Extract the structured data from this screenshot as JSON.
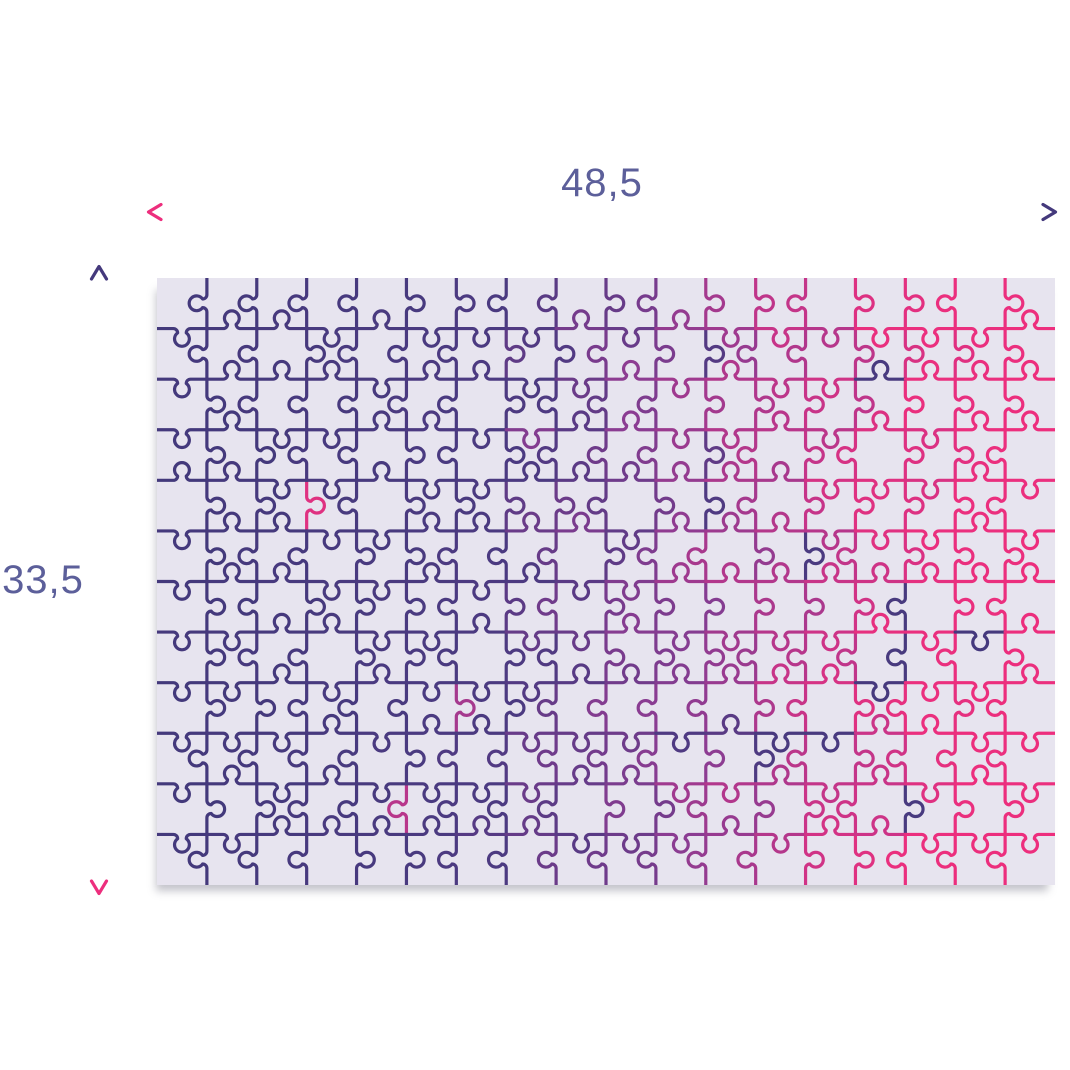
{
  "diagram": {
    "width_label": "48,5",
    "height_label": "33,5",
    "label_color": "#5c5f9a",
    "colors": {
      "pink": "#ed2e7d",
      "indigo": "#44397c",
      "purple_mid": "#8c3d8e"
    },
    "board": {
      "background": "#e7e4ef",
      "cols": 18,
      "rows": 12,
      "seed": 11,
      "outlier_chance": 0.035,
      "jitter": 0.12,
      "stroke_width": 3.2,
      "gradient_stops": [
        [
          0,
          "#43397b"
        ],
        [
          0.38,
          "#4c3a81"
        ],
        [
          0.58,
          "#8a3c92"
        ],
        [
          0.75,
          "#c93488"
        ],
        [
          0.87,
          "#ea2f7e"
        ],
        [
          1,
          "#ed2e7d"
        ]
      ]
    }
  }
}
